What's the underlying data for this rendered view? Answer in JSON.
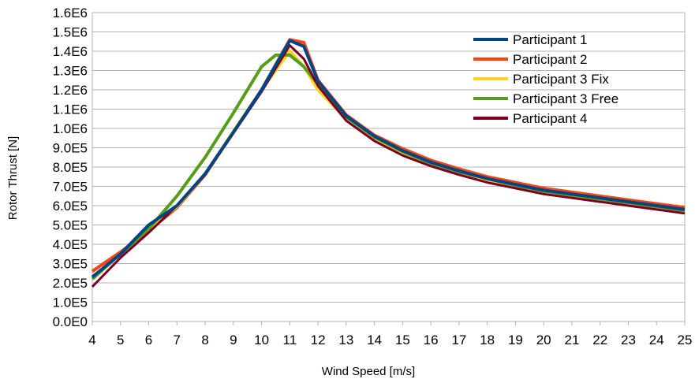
{
  "chart_data": {
    "type": "line",
    "xlabel": "Wind Speed [m/s]",
    "ylabel": "Rotor Thrust [N]",
    "xlim": [
      4,
      25
    ],
    "ylim": [
      0,
      1600000
    ],
    "x_ticks": [
      "4",
      "5",
      "6",
      "7",
      "8",
      "9",
      "10",
      "11",
      "12",
      "13",
      "14",
      "15",
      "16",
      "17",
      "18",
      "19",
      "20",
      "21",
      "22",
      "23",
      "24",
      "25"
    ],
    "y_ticks": [
      "0.0E0",
      "1.0E5",
      "2.0E5",
      "3.0E5",
      "4.0E5",
      "5.0E5",
      "6.0E5",
      "7.0E5",
      "8.0E5",
      "9.0E5",
      "1.0E6",
      "1.1E6",
      "1.2E6",
      "1.3E6",
      "1.4E6",
      "1.5E6",
      "1.6E6"
    ],
    "grid": true,
    "legend_position": "top-right",
    "series": [
      {
        "name": "Participant 2",
        "color": "#ff420e",
        "width": 4,
        "x": [
          4,
          5,
          6,
          7,
          8,
          9,
          10,
          11,
          11.5,
          12,
          13,
          14,
          15,
          16,
          17,
          18,
          19,
          20,
          21,
          22,
          23,
          24,
          25
        ],
        "y": [
          260000,
          360000,
          470000,
          590000,
          760000,
          980000,
          1200000,
          1460000,
          1445000,
          1250000,
          1070000,
          965000,
          895000,
          835000,
          790000,
          750000,
          720000,
          690000,
          670000,
          650000,
          630000,
          610000,
          590000
        ]
      },
      {
        "name": "Participant 3 Fix",
        "color": "#ffd320",
        "width": 4,
        "x": [
          4,
          5,
          6,
          7,
          8,
          9,
          10,
          11,
          11.5,
          12,
          13,
          14,
          15,
          16,
          17,
          18,
          19,
          20,
          21,
          22,
          23,
          24,
          25
        ],
        "y": [
          230000,
          350000,
          480000,
          595000,
          765000,
          985000,
          1200000,
          1400000,
          1320000,
          1200000,
          1050000,
          945000,
          875000,
          815000,
          770000,
          735000,
          700000,
          670000,
          650000,
          630000,
          610000,
          590000,
          570000
        ]
      },
      {
        "name": "Participant 3 Free",
        "color": "#579d1c",
        "width": 4,
        "x": [
          4,
          5,
          6,
          7,
          8,
          9,
          10,
          10.5,
          11,
          11.5,
          12,
          13,
          14,
          15,
          16,
          17,
          18,
          19,
          20,
          21,
          22,
          23,
          24,
          25
        ],
        "y": [
          220000,
          350000,
          480000,
          650000,
          850000,
          1080000,
          1320000,
          1380000,
          1380000,
          1320000,
          1230000,
          1060000,
          955000,
          880000,
          820000,
          775000,
          740000,
          705000,
          675000,
          655000,
          635000,
          615000,
          595000,
          575000
        ]
      },
      {
        "name": "Participant 4",
        "color": "#7e0021",
        "width": 3,
        "x": [
          4,
          5,
          6,
          7,
          8,
          9,
          10,
          11,
          11.5,
          12,
          13,
          14,
          15,
          16,
          17,
          18,
          19,
          20,
          21,
          22,
          23,
          24,
          25
        ],
        "y": [
          180000,
          330000,
          460000,
          600000,
          760000,
          975000,
          1190000,
          1430000,
          1360000,
          1220000,
          1040000,
          935000,
          860000,
          805000,
          760000,
          720000,
          690000,
          660000,
          640000,
          620000,
          600000,
          580000,
          560000
        ]
      },
      {
        "name": "Participant 1",
        "color": "#004586",
        "width": 4,
        "x": [
          4,
          5,
          6,
          7,
          8,
          9,
          10,
          11,
          11.5,
          12,
          13,
          14,
          15,
          16,
          17,
          18,
          19,
          20,
          21,
          22,
          23,
          24,
          25
        ],
        "y": [
          230000,
          350000,
          500000,
          600000,
          765000,
          980000,
          1200000,
          1455000,
          1425000,
          1245000,
          1065000,
          960000,
          885000,
          825000,
          780000,
          740000,
          710000,
          680000,
          660000,
          640000,
          620000,
          600000,
          580000
        ]
      }
    ],
    "legend_order": [
      "Participant 1",
      "Participant 2",
      "Participant 3 Fix",
      "Participant 3 Free",
      "Participant 4"
    ]
  }
}
